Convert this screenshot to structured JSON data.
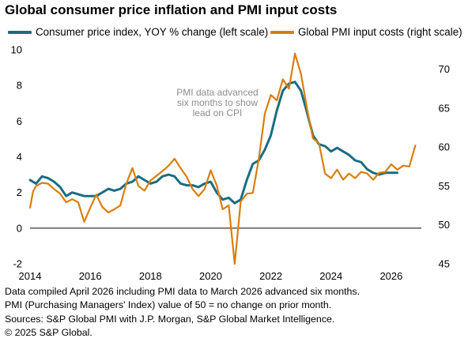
{
  "title": "Global consumer price inflation and PMI input costs",
  "legend": [
    {
      "label": "Consumer price index, YOY % change (left scale)",
      "color": "#1b6d80"
    },
    {
      "label": "Global PMI input costs (right scale)",
      "color": "#d97e0f"
    }
  ],
  "annotation": [
    "PMI data advanced",
    "six months to show",
    "lead on CPI"
  ],
  "footnotes": [
    "Data compiled April 2026 including PMI data to March 2026 advanced six months.",
    "PMI (Purchasing Managers' Index) value of 50 = no change on prior month.",
    "Sources: S&P Global PMI with J.P. Morgan, S&P Global Market Intelligence.",
    "© 2025 S&P Global."
  ],
  "chart_data": {
    "type": "line",
    "title": "Global consumer price inflation and PMI input costs",
    "xlim": [
      2014,
      2027
    ],
    "x_ticks": [
      "2014",
      "2016",
      "2018",
      "2020",
      "2022",
      "2024",
      "2026"
    ],
    "y_left": {
      "lim": [
        -2,
        10
      ],
      "ticks": [
        "-2",
        "0",
        "2",
        "4",
        "6",
        "8",
        "10"
      ]
    },
    "y_right": {
      "lim": [
        45,
        72.5
      ],
      "ticks": [
        "45",
        "50",
        "55",
        "60",
        "65",
        "70"
      ]
    },
    "grid": false,
    "legend_position": "top",
    "series": [
      {
        "name": "Consumer price index, YOY % change (left scale)",
        "axis": "left",
        "color": "#1b6d80",
        "points": [
          [
            2014.0,
            2.7
          ],
          [
            2014.2,
            2.5
          ],
          [
            2014.4,
            2.9
          ],
          [
            2014.6,
            2.8
          ],
          [
            2014.8,
            2.6
          ],
          [
            2015.0,
            2.3
          ],
          [
            2015.2,
            1.8
          ],
          [
            2015.4,
            2.0
          ],
          [
            2015.6,
            1.9
          ],
          [
            2015.8,
            1.8
          ],
          [
            2016.0,
            1.8
          ],
          [
            2016.2,
            1.8
          ],
          [
            2016.4,
            2.0
          ],
          [
            2016.6,
            2.2
          ],
          [
            2016.8,
            2.1
          ],
          [
            2017.0,
            2.2
          ],
          [
            2017.2,
            2.5
          ],
          [
            2017.4,
            2.6
          ],
          [
            2017.6,
            2.9
          ],
          [
            2017.8,
            2.7
          ],
          [
            2018.0,
            2.5
          ],
          [
            2018.2,
            2.6
          ],
          [
            2018.4,
            2.9
          ],
          [
            2018.6,
            3.0
          ],
          [
            2018.8,
            2.9
          ],
          [
            2019.0,
            2.5
          ],
          [
            2019.2,
            2.4
          ],
          [
            2019.4,
            2.4
          ],
          [
            2019.6,
            2.3
          ],
          [
            2019.8,
            2.5
          ],
          [
            2020.0,
            2.6
          ],
          [
            2020.2,
            2.0
          ],
          [
            2020.4,
            1.6
          ],
          [
            2020.6,
            1.7
          ],
          [
            2020.8,
            1.4
          ],
          [
            2021.0,
            1.6
          ],
          [
            2021.2,
            2.7
          ],
          [
            2021.4,
            3.6
          ],
          [
            2021.6,
            3.8
          ],
          [
            2021.8,
            4.4
          ],
          [
            2022.0,
            5.2
          ],
          [
            2022.2,
            6.6
          ],
          [
            2022.4,
            7.7
          ],
          [
            2022.6,
            8.1
          ],
          [
            2022.8,
            8.2
          ],
          [
            2023.0,
            7.7
          ],
          [
            2023.2,
            6.5
          ],
          [
            2023.4,
            5.2
          ],
          [
            2023.6,
            4.7
          ],
          [
            2023.8,
            4.6
          ],
          [
            2024.0,
            4.3
          ],
          [
            2024.2,
            4.5
          ],
          [
            2024.4,
            4.3
          ],
          [
            2024.6,
            4.1
          ],
          [
            2024.8,
            3.8
          ],
          [
            2025.0,
            3.7
          ],
          [
            2025.2,
            3.3
          ],
          [
            2025.4,
            3.1
          ],
          [
            2025.6,
            3.0
          ],
          [
            2025.8,
            3.1
          ],
          [
            2026.0,
            3.1
          ],
          [
            2026.2,
            3.1
          ]
        ]
      },
      {
        "name": "Global PMI input costs (right scale)",
        "axis": "right",
        "color": "#d97e0f",
        "points": [
          [
            2014.0,
            52.2
          ],
          [
            2014.1,
            54.3
          ],
          [
            2014.2,
            55.0
          ],
          [
            2014.4,
            55.4
          ],
          [
            2014.6,
            55.3
          ],
          [
            2014.8,
            54.6
          ],
          [
            2015.0,
            54.0
          ],
          [
            2015.2,
            52.9
          ],
          [
            2015.4,
            53.3
          ],
          [
            2015.6,
            52.9
          ],
          [
            2015.8,
            50.4
          ],
          [
            2016.0,
            52.2
          ],
          [
            2016.2,
            53.9
          ],
          [
            2016.4,
            52.3
          ],
          [
            2016.6,
            51.6
          ],
          [
            2016.8,
            52.0
          ],
          [
            2017.0,
            52.5
          ],
          [
            2017.2,
            55.3
          ],
          [
            2017.4,
            57.3
          ],
          [
            2017.6,
            55.0
          ],
          [
            2017.8,
            54.4
          ],
          [
            2018.0,
            55.7
          ],
          [
            2018.2,
            56.3
          ],
          [
            2018.4,
            56.9
          ],
          [
            2018.6,
            57.6
          ],
          [
            2018.8,
            58.5
          ],
          [
            2019.0,
            57.3
          ],
          [
            2019.2,
            56.2
          ],
          [
            2019.4,
            54.6
          ],
          [
            2019.6,
            53.7
          ],
          [
            2019.8,
            54.6
          ],
          [
            2020.0,
            57.0
          ],
          [
            2020.2,
            55.1
          ],
          [
            2020.4,
            52.0
          ],
          [
            2020.6,
            52.5
          ],
          [
            2020.8,
            45.0
          ],
          [
            2021.0,
            53.0
          ],
          [
            2021.2,
            54.0
          ],
          [
            2021.4,
            54.1
          ],
          [
            2021.6,
            58.5
          ],
          [
            2021.8,
            64.3
          ],
          [
            2022.0,
            66.7
          ],
          [
            2022.2,
            66.0
          ],
          [
            2022.4,
            68.7
          ],
          [
            2022.6,
            67.5
          ],
          [
            2022.8,
            72.0
          ],
          [
            2023.0,
            69.4
          ],
          [
            2023.2,
            65.0
          ],
          [
            2023.4,
            61.1
          ],
          [
            2023.6,
            60.5
          ],
          [
            2023.8,
            56.6
          ],
          [
            2024.0,
            56.0
          ],
          [
            2024.2,
            57.1
          ],
          [
            2024.4,
            55.8
          ],
          [
            2024.6,
            56.6
          ],
          [
            2024.8,
            56.0
          ],
          [
            2025.0,
            56.8
          ],
          [
            2025.2,
            56.6
          ],
          [
            2025.4,
            55.8
          ],
          [
            2025.6,
            56.7
          ],
          [
            2025.8,
            56.8
          ],
          [
            2026.0,
            57.8
          ],
          [
            2026.2,
            57.1
          ],
          [
            2026.4,
            57.6
          ],
          [
            2026.6,
            57.5
          ],
          [
            2026.8,
            60.2
          ]
        ]
      }
    ]
  }
}
